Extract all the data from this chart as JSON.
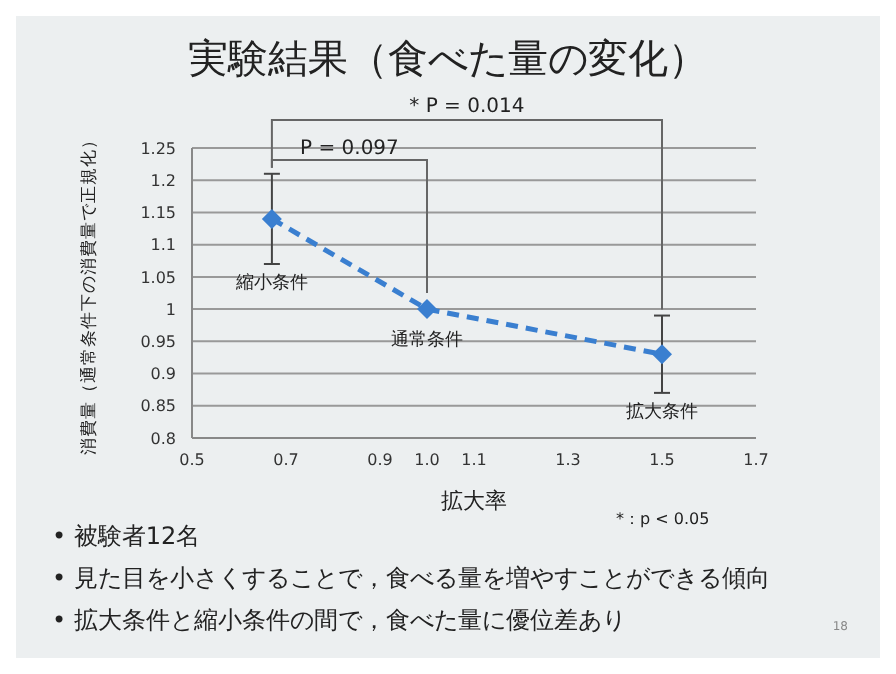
{
  "chart_data": {
    "type": "line",
    "title": "実験結果（食べた量の変化）",
    "xlabel": "拡大率",
    "ylabel": "消費量（通常条件下の消費量で正規化）",
    "x": [
      0.67,
      1.0,
      1.5
    ],
    "series": [
      {
        "color": "#3a7fd0",
        "values": [
          1.14,
          1.0,
          0.93
        ],
        "errors": [
          0.07,
          null,
          0.06
        ]
      }
    ],
    "xlim": [
      0.5,
      1.7
    ],
    "xticks": [
      0.5,
      0.7,
      0.9,
      {
        "value": 1.0,
        "label": "1.0"
      },
      1.1,
      1.3,
      1.5,
      1.7
    ],
    "ylim": [
      0.8,
      1.25
    ],
    "yticks": [
      0.8,
      0.85,
      0.9,
      0.95,
      1,
      1.05,
      1.1,
      1.15,
      1.2,
      1.25
    ],
    "grid": "y",
    "marker": "diamond",
    "line_style": "dashed",
    "legend": false,
    "annotations": [
      "* P = 0.014",
      "P = 0.097",
      "縮小条件",
      "通常条件",
      "拡大条件",
      "*：p < 0.05",
      "• 被験者12名",
      "• 見た目を小さくすることで，食べる量を増やすことができる傾向",
      "• 拡大条件と縮小条件の間で，食べた量に優位差あり",
      "18"
    ]
  }
}
